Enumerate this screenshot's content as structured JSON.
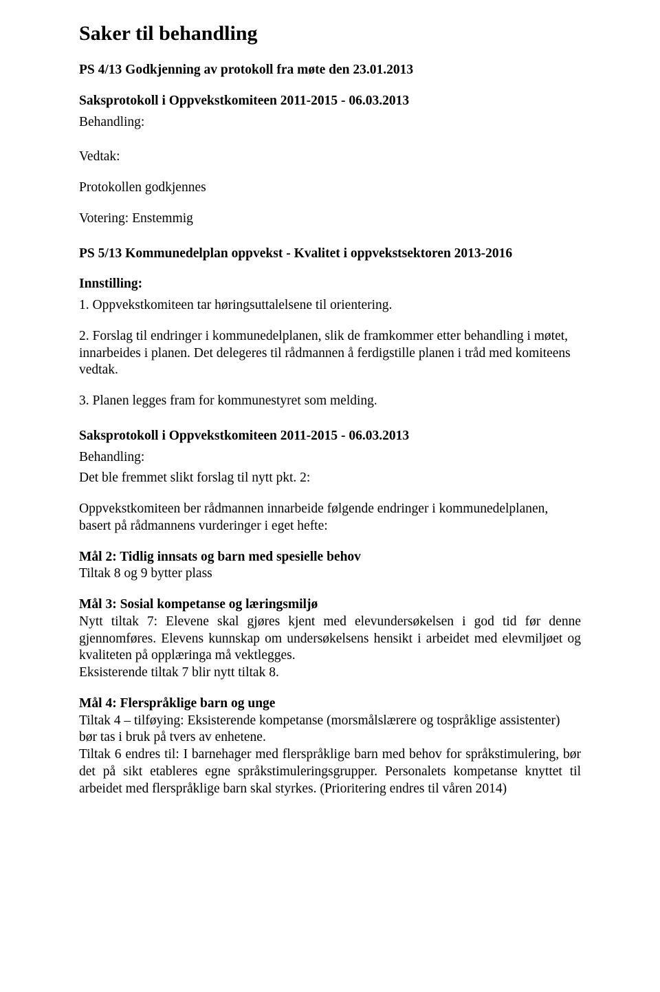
{
  "title": "Saker til behandling",
  "line1": "PS 4/13 Godkjenning av protokoll fra møte den 23.01.2013",
  "line2": "Saksprotokoll i Oppvekstkomiteen 2011-2015 - 06.03.2013",
  "line3": "Behandling:",
  "line4": "Vedtak:",
  "line5": "Protokollen godkjennes",
  "line6": "Votering: Enstemmig",
  "line7": "PS 5/13 Kommunedelplan oppvekst - Kvalitet i oppvekstsektoren 2013-2016",
  "line8": "Innstilling:",
  "line9": "1. Oppvekstkomiteen tar høringsuttalelsene til orientering.",
  "line10": "2. Forslag til endringer i kommunedelplanen, slik de framkommer etter behandling i møtet, innarbeides i planen. Det delegeres til rådmannen å ferdigstille planen i tråd med komiteens vedtak.",
  "line11": "3. Planen legges fram for kommunestyret som melding.",
  "line12": "Saksprotokoll i Oppvekstkomiteen 2011-2015 - 06.03.2013",
  "line13": "Behandling:",
  "line14": "Det ble fremmet slikt forslag til nytt pkt. 2:",
  "line15": "Oppvekstkomiteen ber rådmannen innarbeide følgende endringer i kommunedelplanen, basert på rådmannens vurderinger i eget hefte:",
  "line16": "Mål 2: Tidlig innsats og barn med spesielle behov",
  "line17": "Tiltak 8 og 9 bytter plass",
  "line18": "Mål 3: Sosial kompetanse og læringsmiljø",
  "line19": "Nytt tiltak 7: Elevene skal gjøres kjent med elevundersøkelsen i god tid før denne gjennomføres. Elevens kunnskap om undersøkelsens hensikt i arbeidet med elevmiljøet og kvaliteten på opplæringa må vektlegges.",
  "line20": "Eksisterende tiltak 7 blir nytt tiltak 8.",
  "line21": "Mål 4: Flerspråklige barn og unge",
  "line22": "Tiltak 4 – tilføying: Eksisterende kompetanse (morsmålslærere og tospråklige assistenter) bør tas i bruk på tvers av enhetene.",
  "line23": "Tiltak 6 endres til: I barnehager med flerspråklige barn med behov for språkstimulering, bør det på sikt etableres egne språkstimuleringsgrupper. Personalets kompetanse knyttet til arbeidet med flerspråklige barn skal styrkes. (Prioritering endres til våren 2014)"
}
